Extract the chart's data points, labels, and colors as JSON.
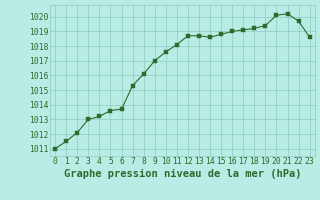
{
  "x": [
    0,
    1,
    2,
    3,
    4,
    5,
    6,
    7,
    8,
    9,
    10,
    11,
    12,
    13,
    14,
    15,
    16,
    17,
    18,
    19,
    20,
    21,
    22,
    23
  ],
  "y": [
    1011.0,
    1011.5,
    1012.1,
    1013.0,
    1013.2,
    1013.6,
    1013.7,
    1015.3,
    1016.1,
    1017.0,
    1017.6,
    1018.1,
    1018.7,
    1018.7,
    1018.6,
    1018.8,
    1019.0,
    1019.1,
    1019.2,
    1019.4,
    1020.1,
    1020.2,
    1019.7,
    1018.6
  ],
  "line_color": "#2d6a2d",
  "marker_color": "#2d6a2d",
  "bg_color": "#b8ece4",
  "grid_color": "#8eccc4",
  "title": "Graphe pression niveau de la mer (hPa)",
  "ylim_min": 1010.5,
  "ylim_max": 1020.8,
  "xlim_min": -0.5,
  "xlim_max": 23.5,
  "yticks": [
    1011,
    1012,
    1013,
    1014,
    1015,
    1016,
    1017,
    1018,
    1019,
    1020
  ],
  "xticks": [
    0,
    1,
    2,
    3,
    4,
    5,
    6,
    7,
    8,
    9,
    10,
    11,
    12,
    13,
    14,
    15,
    16,
    17,
    18,
    19,
    20,
    21,
    22,
    23
  ],
  "title_fontsize": 7.5,
  "tick_fontsize": 5.8,
  "title_fontweight": "bold",
  "line_width": 0.8,
  "marker_size": 2.2
}
